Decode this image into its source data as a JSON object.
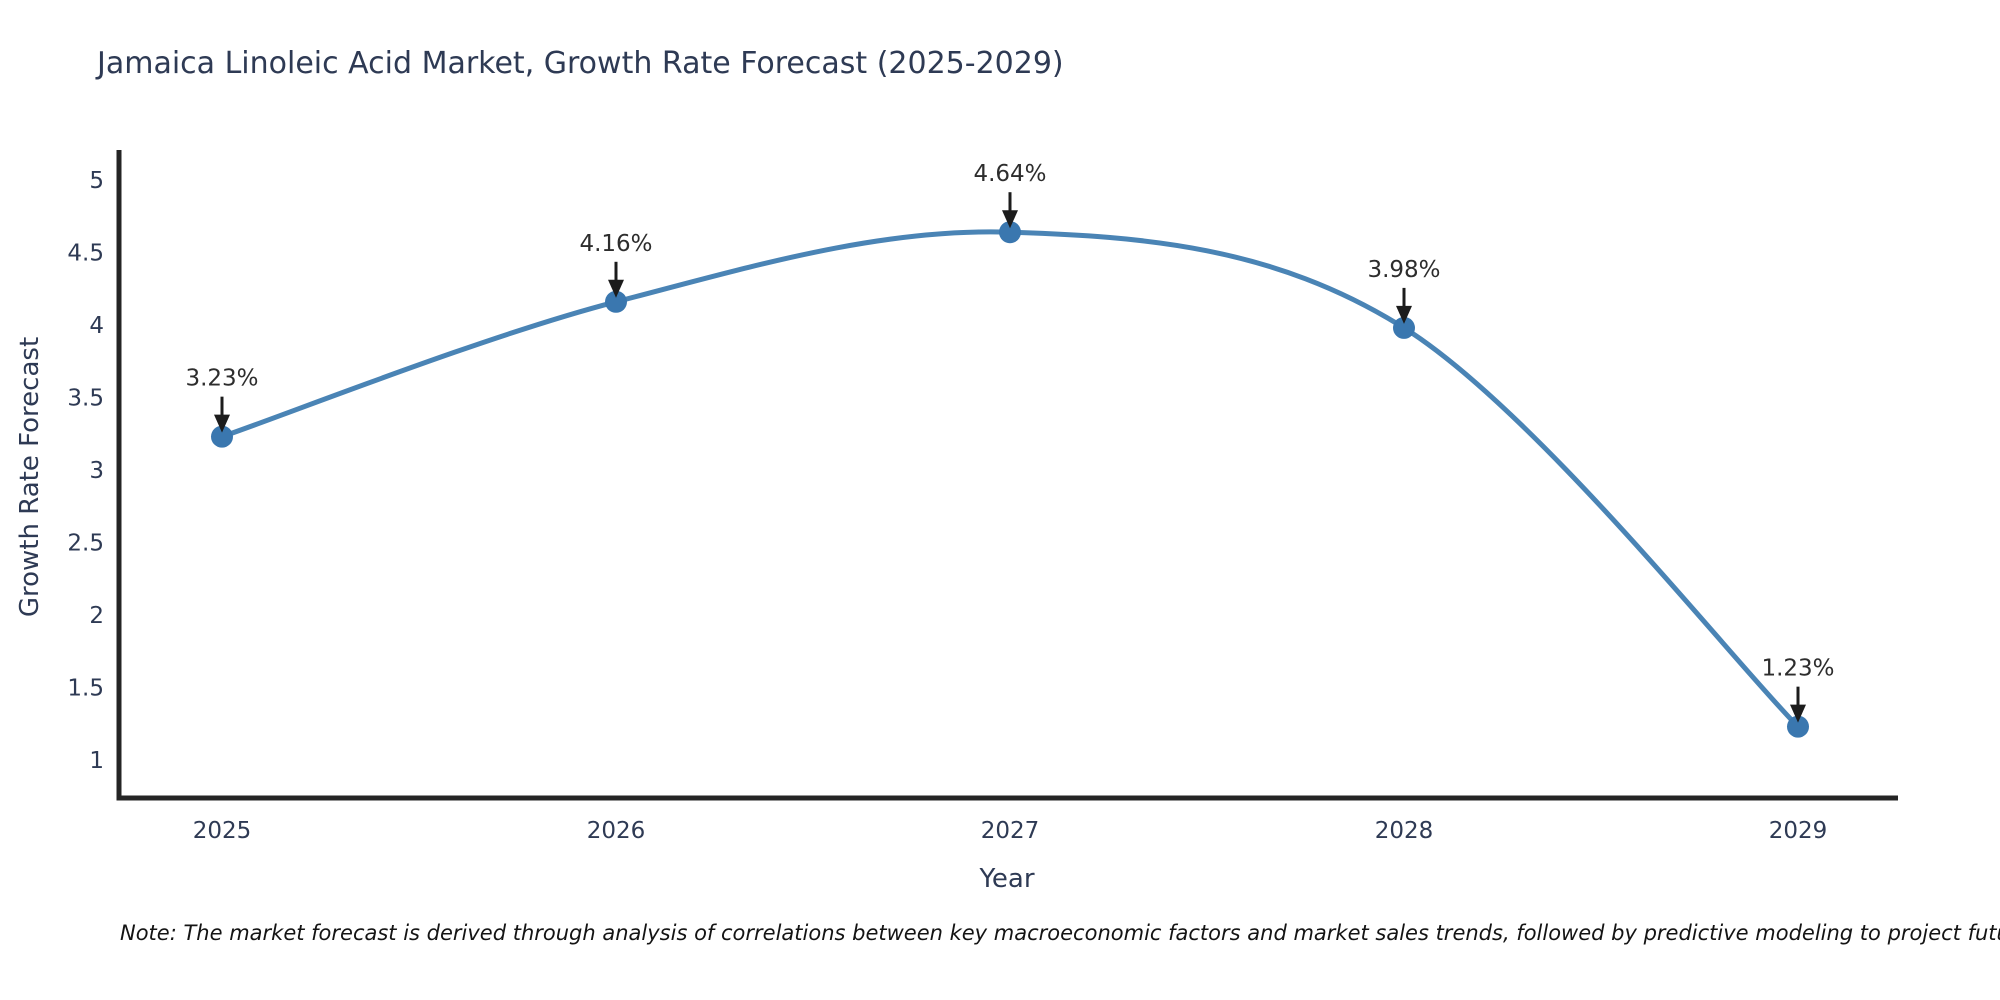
{
  "figure": {
    "background": "#ffffff"
  },
  "note": {
    "text": "Note: The market forecast is derived through analysis of correlations between key macroeconomic factors and market sales trends, followed by predictive modeling to project future sales"
  },
  "chart_data": {
    "type": "line",
    "title": "Jamaica Linoleic Acid Market, Growth Rate Forecast (2025-2029)",
    "xlabel": "Year",
    "ylabel": "Growth Rate Forecast",
    "categories": [
      "2025",
      "2026",
      "2027",
      "2028",
      "2029"
    ],
    "series": [
      {
        "name": "Growth Rate Forecast",
        "values": [
          3.23,
          4.16,
          4.64,
          3.98,
          1.23
        ],
        "point_labels": [
          "3.23%",
          "4.16%",
          "4.64%",
          "3.98%",
          "1.23%"
        ]
      }
    ],
    "ylim": [
      1,
      5
    ],
    "yticks": [
      1,
      1.5,
      2,
      2.5,
      3,
      3.5,
      4,
      4.5,
      5
    ],
    "grid": false,
    "legend": false,
    "line_shape": "spline",
    "annotation_style": "value-label-with-down-arrow",
    "colors": {
      "line": "#4a84b5",
      "marker": "#3a77af",
      "axis": "#252525",
      "tick_text": "#2e3a54",
      "title_text": "#2e3a54",
      "annotation_text": "#2d2d2d",
      "arrow": "#1c1c1c",
      "note_text": "#141414"
    }
  }
}
